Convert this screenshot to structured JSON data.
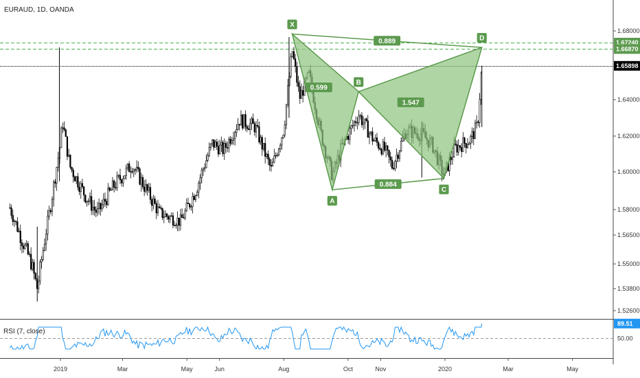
{
  "title": "EURAUD, 1D, OANDA",
  "rsi_title": "RSI (7, close)",
  "colors": {
    "candle": "#000000",
    "pattern_fill": "#8fc37f",
    "pattern_stroke": "#5b9b4c",
    "label_bg": "#5c9a4e",
    "level_line": "#4caf50",
    "price_line": "#000000",
    "rsi_line": "#2196f3",
    "grid_axis": "#555555"
  },
  "chart_data": {
    "type": "candlestick",
    "instrument": "EURAUD",
    "timeframe": "1D",
    "broker": "OANDA",
    "ylim": [
      1.52,
      1.69
    ],
    "ytick_labels": [
      "1.68000",
      "1.64000",
      "1.62000",
      "1.60000",
      "1.58000",
      "1.56500",
      "1.55000",
      "1.53800",
      "1.52600"
    ],
    "xtick_labels": [
      "2019",
      "Mar",
      "May",
      "Jun",
      "Aug",
      "Oct",
      "Nov",
      "2020",
      "Mar",
      "May"
    ],
    "price_levels": [
      {
        "label": "1.67240",
        "value": 1.6724,
        "style": "dashed-green"
      },
      {
        "label": "1.66870",
        "value": 1.6687,
        "style": "dashed-green"
      },
      {
        "label": "1.65898",
        "value": 1.65898,
        "style": "dotted-black",
        "current": true
      }
    ],
    "harmonic_pattern": {
      "points": [
        {
          "name": "X",
          "date": "2019-08-09",
          "price": 1.678
        },
        {
          "name": "A",
          "date": "2019-09-16",
          "price": 1.5905
        },
        {
          "name": "B",
          "date": "2019-10-11",
          "price": 1.6445
        },
        {
          "name": "C",
          "date": "2019-12-31",
          "price": 1.5965
        },
        {
          "name": "D",
          "date": "2020-02-05",
          "price": 1.6696
        }
      ],
      "ratios": [
        {
          "label": "0.599",
          "between": "XA-AB"
        },
        {
          "label": "0.884",
          "between": "A-C"
        },
        {
          "label": "1.547",
          "between": "BC-CD"
        },
        {
          "label": "0.889",
          "between": "X-D"
        }
      ]
    },
    "candles_approx": {
      "note": "approximate daily closing path read from the price axis",
      "path": [
        [
          "2018-11-14",
          1.581
        ],
        [
          "2018-11-25",
          1.563
        ],
        [
          "2018-12-04",
          1.551
        ],
        [
          "2018-12-10",
          1.538
        ],
        [
          "2018-12-20",
          1.573
        ],
        [
          "2018-12-31",
          1.612
        ],
        [
          "2019-01-03",
          1.628
        ],
        [
          "2019-01-10",
          1.603
        ],
        [
          "2019-01-25",
          1.587
        ],
        [
          "2019-02-05",
          1.578
        ],
        [
          "2019-02-20",
          1.592
        ],
        [
          "2019-03-10",
          1.604
        ],
        [
          "2019-03-20",
          1.594
        ],
        [
          "2019-04-05",
          1.578
        ],
        [
          "2019-04-25",
          1.573
        ],
        [
          "2019-05-10",
          1.591
        ],
        [
          "2019-05-25",
          1.616
        ],
        [
          "2019-06-05",
          1.612
        ],
        [
          "2019-06-20",
          1.629
        ],
        [
          "2019-07-05",
          1.625
        ],
        [
          "2019-07-20",
          1.601
        ],
        [
          "2019-08-01",
          1.624
        ],
        [
          "2019-08-09",
          1.668
        ],
        [
          "2019-08-16",
          1.641
        ],
        [
          "2019-08-25",
          1.654
        ],
        [
          "2019-09-05",
          1.622
        ],
        [
          "2019-09-16",
          1.598
        ],
        [
          "2019-09-25",
          1.614
        ],
        [
          "2019-10-11",
          1.632
        ],
        [
          "2019-10-25",
          1.618
        ],
        [
          "2019-11-05",
          1.612
        ],
        [
          "2019-11-12",
          1.603
        ],
        [
          "2019-11-25",
          1.623
        ],
        [
          "2019-12-10",
          1.621
        ],
        [
          "2019-12-20",
          1.615
        ],
        [
          "2019-12-31",
          1.598
        ],
        [
          "2020-01-10",
          1.613
        ],
        [
          "2020-01-25",
          1.618
        ],
        [
          "2020-02-01",
          1.626
        ],
        [
          "2020-02-05",
          1.659
        ]
      ]
    },
    "rsi": {
      "label": "89.51",
      "level": 50.0,
      "level_label": "50.00",
      "last_value": 89.51
    }
  }
}
